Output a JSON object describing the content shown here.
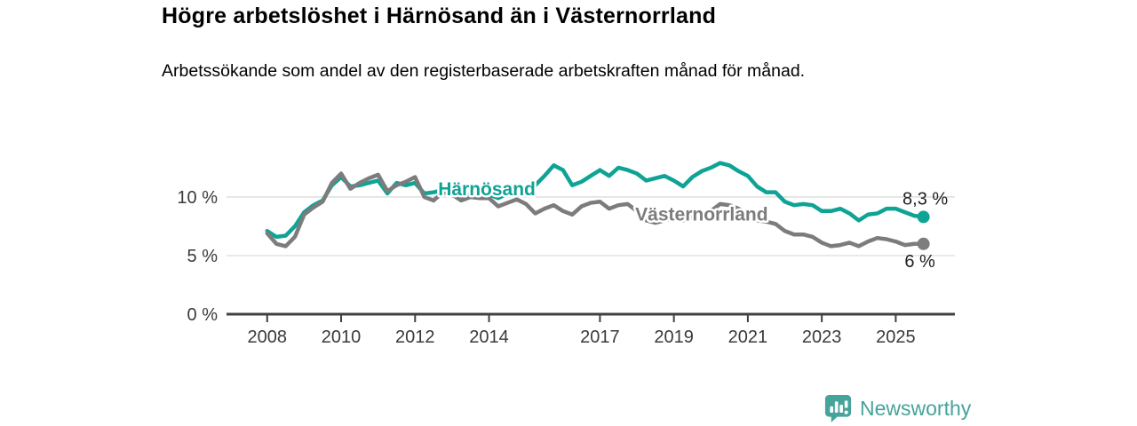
{
  "header": {
    "title": "Högre arbetslöshet i Härnösand än i Västernorrland",
    "subtitle": "Arbetssökande som andel av den registerbaserade arbetskraften månad för månad."
  },
  "footer": {
    "brand": "Newsworthy",
    "brand_color": "#46A39B"
  },
  "chart_data": {
    "type": "line",
    "title": "Högre arbetslöshet i Härnösand än i Västernorrland",
    "xlabel": "",
    "ylabel": "",
    "grid": "horizontal-only",
    "legend_position": "inline-labels-on-lines",
    "xlim": [
      2006.9,
      2026.6
    ],
    "ylim": [
      0,
      15.45
    ],
    "x_ticks": [
      2008,
      2010,
      2012,
      2014,
      2017,
      2019,
      2021,
      2023,
      2025
    ],
    "x_tick_labels": [
      "2008",
      "2010",
      "2012",
      "2014",
      "2017",
      "2019",
      "2021",
      "2023",
      "2025"
    ],
    "y_ticks": [
      0,
      5,
      10
    ],
    "y_tick_labels": [
      "0 %",
      "5 %",
      "10 %"
    ],
    "grid_color": "#DCDCDC",
    "axis_color": "#404040",
    "tick_label_color": "#3A3A3A",
    "end_label_color": "#202020",
    "x": [
      2008.0,
      2008.25,
      2008.5,
      2008.75,
      2009.0,
      2009.25,
      2009.5,
      2009.75,
      2010.0,
      2010.25,
      2010.5,
      2010.75,
      2011.0,
      2011.25,
      2011.5,
      2011.75,
      2012.0,
      2012.25,
      2012.5,
      2012.75,
      2013.0,
      2013.25,
      2013.5,
      2013.75,
      2014.0,
      2014.25,
      2014.5,
      2014.75,
      2015.0,
      2015.25,
      2015.5,
      2015.75,
      2016.0,
      2016.25,
      2016.5,
      2016.75,
      2017.0,
      2017.25,
      2017.5,
      2017.75,
      2018.0,
      2018.25,
      2018.5,
      2018.75,
      2019.0,
      2019.25,
      2019.5,
      2019.75,
      2020.0,
      2020.25,
      2020.5,
      2020.75,
      2021.0,
      2021.25,
      2021.5,
      2021.75,
      2022.0,
      2022.25,
      2022.5,
      2022.75,
      2023.0,
      2023.25,
      2023.5,
      2023.75,
      2024.0,
      2024.25,
      2024.5,
      2024.75,
      2025.0,
      2025.25,
      2025.5,
      2025.75
    ],
    "series": [
      {
        "name": "Härnösand",
        "color": "#0FA396",
        "end_label": "8,3 %",
        "end_label_position": "above",
        "values": [
          7.1,
          6.6,
          6.7,
          7.5,
          8.7,
          9.3,
          9.7,
          11.0,
          11.7,
          10.9,
          11.0,
          11.2,
          11.4,
          10.3,
          11.2,
          11.0,
          11.2,
          10.3,
          10.4,
          10.6,
          10.4,
          9.9,
          10.3,
          10.2,
          10.2,
          9.9,
          10.3,
          10.5,
          10.8,
          11.0,
          11.8,
          12.7,
          12.3,
          11.0,
          11.3,
          11.8,
          12.3,
          11.8,
          12.5,
          12.3,
          12.0,
          11.4,
          11.6,
          11.8,
          11.4,
          10.9,
          11.7,
          12.2,
          12.5,
          12.9,
          12.7,
          12.2,
          11.8,
          10.9,
          10.4,
          10.4,
          9.6,
          9.3,
          9.4,
          9.3,
          8.8,
          8.8,
          9.0,
          8.6,
          8.0,
          8.5,
          8.6,
          9.0,
          9.0,
          8.7,
          8.4,
          8.3
        ]
      },
      {
        "name": "Västernorrland",
        "color": "#7C7C7C",
        "end_label": "6 %",
        "end_label_position": "below",
        "values": [
          6.9,
          6.0,
          5.8,
          6.6,
          8.5,
          9.1,
          9.6,
          11.2,
          12.0,
          10.7,
          11.2,
          11.6,
          11.9,
          10.5,
          11.0,
          11.3,
          11.7,
          10.0,
          9.7,
          10.4,
          10.2,
          9.7,
          10.0,
          9.9,
          9.9,
          9.2,
          9.5,
          9.8,
          9.4,
          8.6,
          9.0,
          9.3,
          8.8,
          8.5,
          9.2,
          9.5,
          9.6,
          9.0,
          9.3,
          9.4,
          8.8,
          8.0,
          7.8,
          8.0,
          8.2,
          8.0,
          8.3,
          8.5,
          8.8,
          9.4,
          9.3,
          9.0,
          8.5,
          8.0,
          7.9,
          7.7,
          7.1,
          6.8,
          6.8,
          6.6,
          6.1,
          5.8,
          5.9,
          6.1,
          5.8,
          6.2,
          6.5,
          6.4,
          6.2,
          5.9,
          6.0,
          6.0
        ]
      }
    ],
    "series_labels": [
      {
        "text": "Härnösand",
        "x": 2013.94,
        "y": 10.15,
        "color": "#0FA396"
      },
      {
        "text": "Västernorrland",
        "x": 2019.75,
        "y": 8.0,
        "color": "#7C7C7C"
      }
    ]
  }
}
